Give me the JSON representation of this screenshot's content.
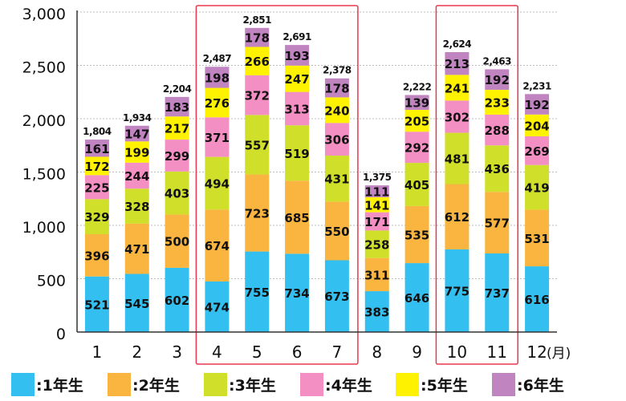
{
  "chart_data": {
    "type": "bar",
    "stacked": true,
    "categories": [
      "1",
      "2",
      "3",
      "4",
      "5",
      "6",
      "7",
      "8",
      "9",
      "10",
      "11",
      "12"
    ],
    "x_unit": "(月)",
    "ylim": [
      0,
      3000
    ],
    "yticks": [
      0,
      500,
      1000,
      1500,
      2000,
      2500,
      3000
    ],
    "ytick_labels": [
      "0",
      "500",
      "1,000",
      "1,500",
      "2,000",
      "2,500",
      "3,000"
    ],
    "grid": true,
    "totals": [
      "1,804",
      "1,934",
      "2,204",
      "2,487",
      "2,851",
      "2,691",
      "2,378",
      "1,375",
      "2,222",
      "2,624",
      "2,463",
      "2,231"
    ],
    "series": [
      {
        "name": ":1年生",
        "color": "#33bfef",
        "values": [
          521,
          545,
          602,
          474,
          755,
          734,
          673,
          383,
          646,
          775,
          737,
          616
        ]
      },
      {
        "name": ":2年生",
        "color": "#f9b53f",
        "values": [
          396,
          471,
          500,
          674,
          723,
          685,
          550,
          311,
          535,
          612,
          577,
          531
        ]
      },
      {
        "name": ":3年生",
        "color": "#cfdf2a",
        "values": [
          329,
          328,
          403,
          494,
          557,
          519,
          431,
          258,
          405,
          481,
          436,
          419
        ]
      },
      {
        "name": ":4年生",
        "color": "#f48fc3",
        "values": [
          225,
          244,
          299,
          371,
          372,
          313,
          306,
          171,
          292,
          302,
          288,
          269
        ]
      },
      {
        "name": ":5年生",
        "color": "#fff200",
        "values": [
          172,
          199,
          217,
          276,
          266,
          247,
          240,
          141,
          205,
          241,
          233,
          204
        ]
      },
      {
        "name": ":6年生",
        "color": "#c084c0",
        "values": [
          161,
          147,
          183,
          198,
          178,
          193,
          178,
          111,
          139,
          213,
          192,
          192
        ]
      }
    ],
    "legend_position": "bottom",
    "highlight_groups": [
      {
        "from": "4",
        "to": "7",
        "color": "#e8384f"
      },
      {
        "from": "10",
        "to": "11",
        "color": "#e8384f"
      }
    ],
    "colors": {
      "axis": "#333333",
      "grid": "#bbbbbb",
      "text": "#111111"
    }
  }
}
